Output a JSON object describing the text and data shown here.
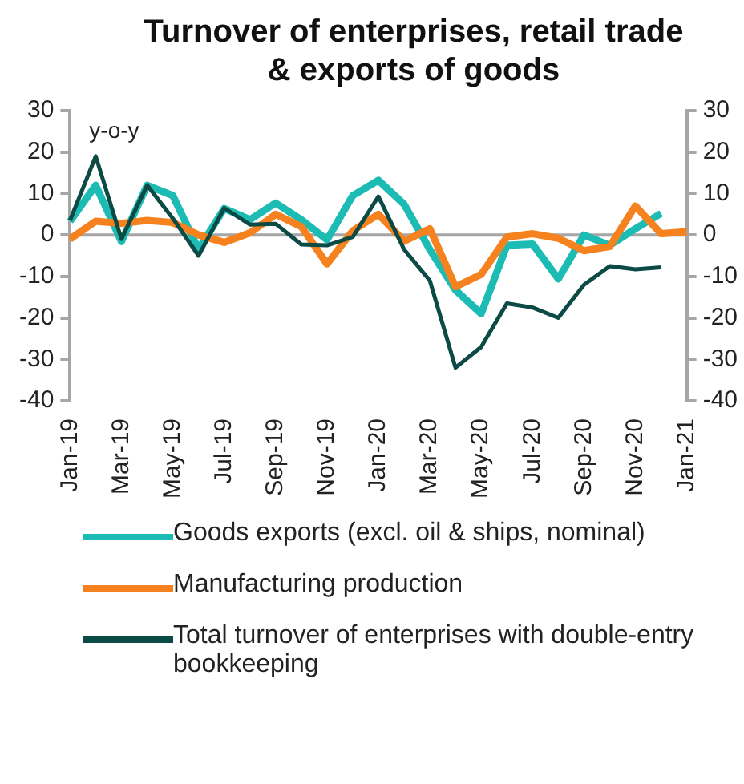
{
  "chart_data": {
    "type": "line",
    "title": "Turnover of enterprises, retail trade & exports of goods",
    "annotations": [
      "y-o-y"
    ],
    "categories": [
      "Jan-19",
      null,
      "Mar-19",
      null,
      "May-19",
      null,
      "Jul-19",
      null,
      "Sep-19",
      null,
      "Nov-19",
      null,
      "Jan-20",
      null,
      "Mar-20",
      null,
      "May-20",
      null,
      "Jul-20",
      null,
      "Sep-20",
      null,
      "Nov-20",
      null,
      "Jan-21"
    ],
    "series": [
      {
        "name": "Goods exports (excl. oil & ships, nominal)",
        "color": "#1cbcb4",
        "values": [
          3.3,
          12,
          -1.6,
          12,
          9.5,
          -3.5,
          6.4,
          3.7,
          7.7,
          3.7,
          -1.2,
          9.5,
          13.2,
          7.4,
          -3.5,
          -13.3,
          -19,
          -2.5,
          -2.2,
          -10.6,
          0,
          -2.5,
          1.5,
          5.2,
          null
        ]
      },
      {
        "name": "Manufacturing production",
        "color": "#f5821f",
        "values": [
          -1,
          3.3,
          2.8,
          3.5,
          3,
          0,
          -1.8,
          0.5,
          5,
          2,
          -7,
          1,
          5,
          -1.5,
          1.5,
          -12.5,
          -9.5,
          -0.5,
          0.3,
          -0.8,
          -3.8,
          -2.8,
          7,
          0.3,
          0.8
        ]
      },
      {
        "name": "Total turnover of enterprises with double-entry bookkeeping",
        "color": "#0b4a45",
        "values": [
          3.5,
          19,
          -1,
          12,
          4,
          -5,
          6.5,
          2.5,
          2.7,
          -2.3,
          -2.5,
          -0.5,
          9.3,
          -3.5,
          -11,
          -32,
          -27,
          -16.5,
          -17.5,
          -20,
          -12,
          -7.5,
          -8.3,
          -7.8,
          null
        ]
      }
    ],
    "ylim": [
      -40,
      30
    ],
    "yticks": [
      -40,
      -30,
      -20,
      -10,
      0,
      10,
      20,
      30
    ],
    "y2lim": [
      -40,
      30
    ],
    "y2ticks": [
      -40,
      -30,
      -20,
      -10,
      0,
      10,
      20,
      30
    ],
    "ref_lines": [
      {
        "axis": "y",
        "value": 0,
        "color": "#a6a6a6"
      }
    ],
    "grid": false,
    "legend": "bottom",
    "marker": "none",
    "line_style": "solid"
  }
}
